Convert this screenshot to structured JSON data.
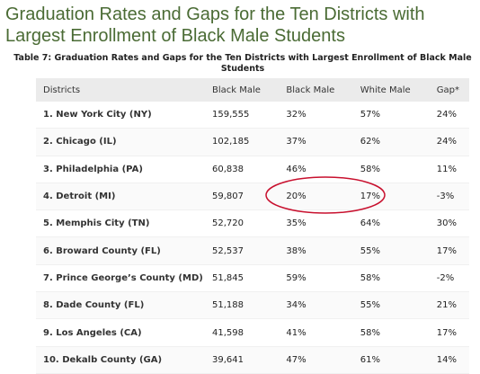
{
  "header": {
    "title": "Graduation Rates and Gaps for the Ten Districts with Largest Enrollment of Black Male Students"
  },
  "table": {
    "caption": "Table 7: Graduation Rates and Gaps for the Ten Districts with Largest Enrollment of Black Male Students",
    "columns": [
      "Districts",
      "Black Male",
      "Black Male",
      "White Male",
      "Gap*"
    ],
    "rows": [
      [
        "1. New York City (NY)",
        "159,555",
        "32%",
        "57%",
        "24%"
      ],
      [
        "2. Chicago (IL)",
        "102,185",
        "37%",
        "62%",
        "24%"
      ],
      [
        "3. Philadelphia (PA)",
        "60,838",
        "46%",
        "58%",
        "11%"
      ],
      [
        "4. Detroit (MI)",
        "59,807",
        "20%",
        "17%",
        "-3%"
      ],
      [
        "5. Memphis City (TN)",
        "52,720",
        "35%",
        "64%",
        "30%"
      ],
      [
        "6. Broward County (FL)",
        "52,537",
        "38%",
        "55%",
        "17%"
      ],
      [
        "7. Prince George’s County (MD)",
        "51,845",
        "59%",
        "58%",
        "-2%"
      ],
      [
        "8. Dade County (FL)",
        "51,188",
        "34%",
        "55%",
        "21%"
      ],
      [
        "9. Los Angeles (CA)",
        "41,598",
        "41%",
        "58%",
        "17%"
      ],
      [
        "10. Dekalb County (GA)",
        "39,641",
        "47%",
        "61%",
        "14%"
      ]
    ]
  }
}
